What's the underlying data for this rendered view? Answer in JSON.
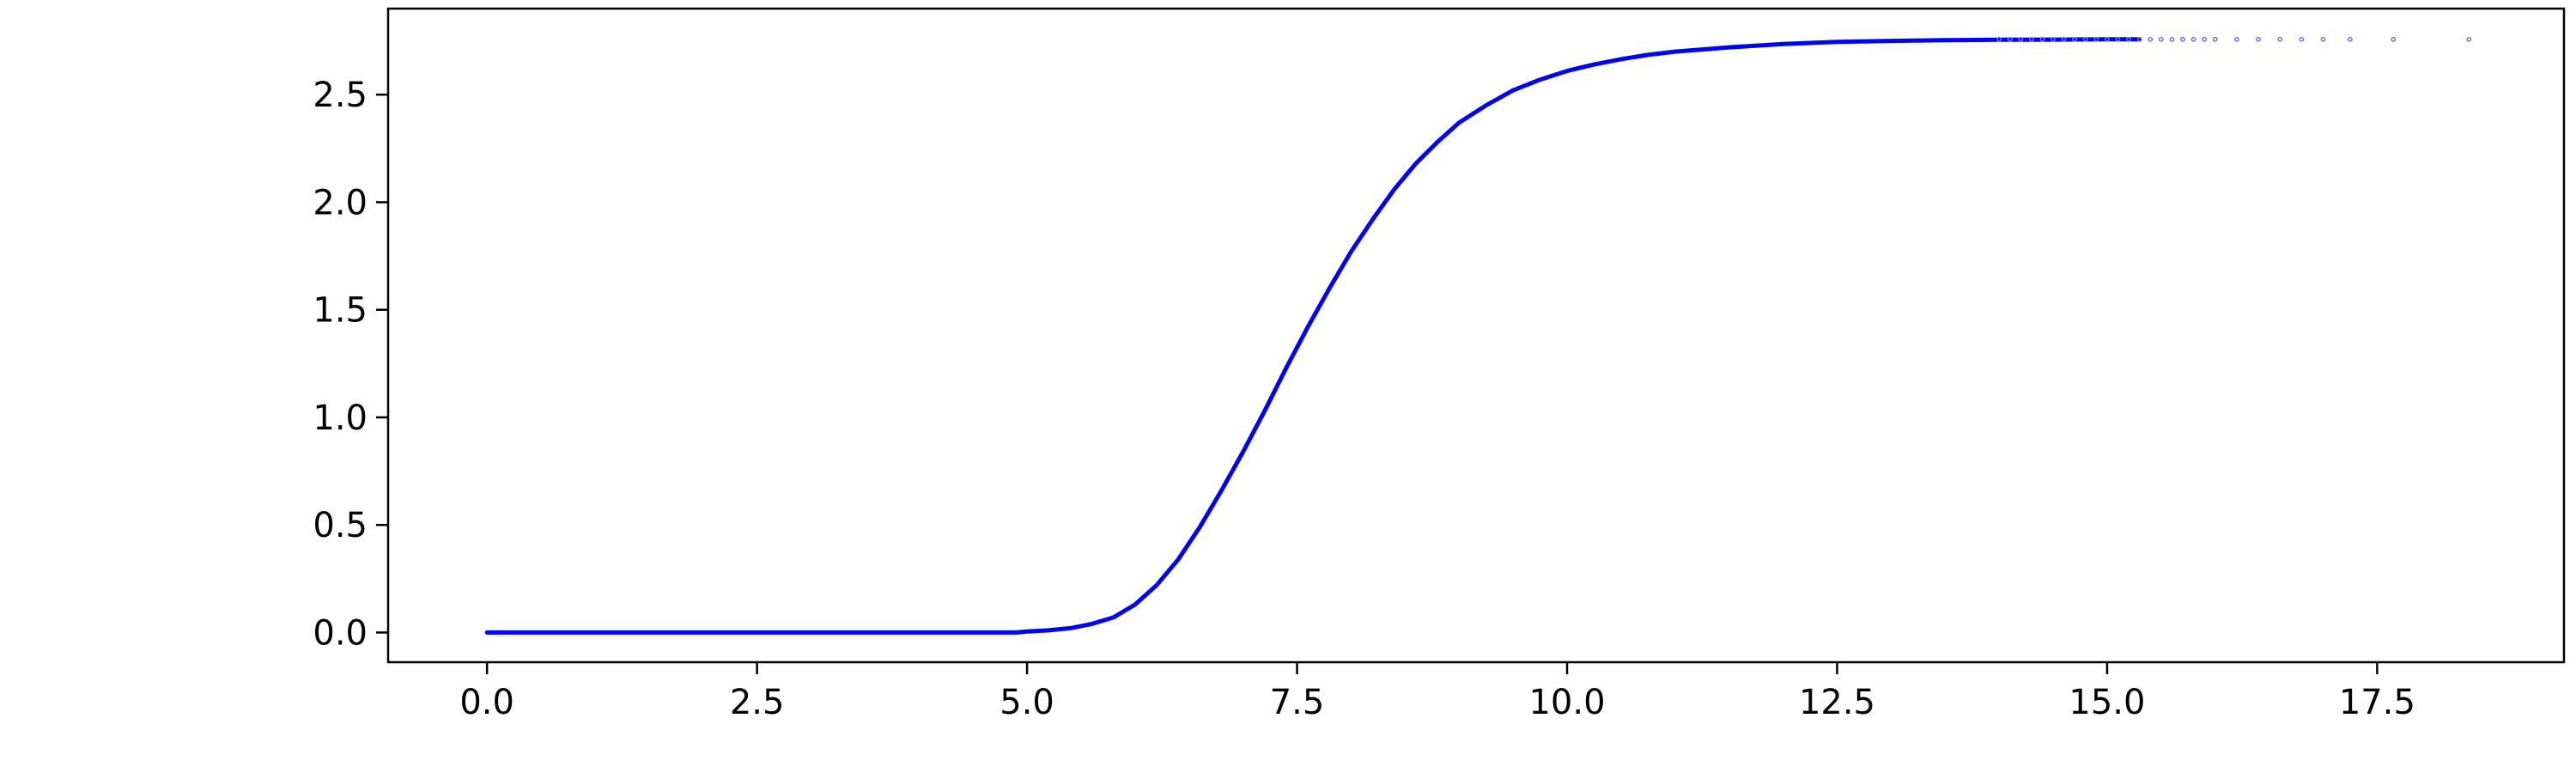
{
  "chart_data": {
    "type": "line",
    "title": "",
    "xlabel": "",
    "ylabel": "",
    "xlim": [
      -0.9156,
      19.23
    ],
    "ylim": [
      -0.138,
      2.9
    ],
    "x_ticks": [
      "0.0",
      "2.5",
      "5.0",
      "7.5",
      "10.0",
      "12.5",
      "15.0",
      "17.5"
    ],
    "y_ticks": [
      "0.0",
      "0.5",
      "1.0",
      "1.5",
      "2.0",
      "2.5"
    ],
    "grid": false,
    "legend": "none",
    "colors": {
      "line": "#0000ff",
      "markers": "#7070ff",
      "axes": "#000000",
      "background": "#ffffff"
    },
    "series": [
      {
        "style": "solid-line",
        "x": [
          0.0,
          1.0,
          2.0,
          3.0,
          4.0,
          4.9,
          5.0,
          5.2,
          5.4,
          5.6,
          5.8,
          6.0,
          6.2,
          6.4,
          6.6,
          6.8,
          7.0,
          7.2,
          7.4,
          7.6,
          7.8,
          8.0,
          8.2,
          8.4,
          8.6,
          8.8,
          9.0,
          9.25,
          9.5,
          9.75,
          10.0,
          10.25,
          10.5,
          10.75,
          11.0,
          11.5,
          12.0,
          12.5,
          13.0,
          13.5,
          14.0,
          14.5,
          15.0,
          15.3
        ],
        "y": [
          0.0,
          0.0,
          0.0,
          0.0,
          0.0,
          0.0,
          0.005,
          0.01,
          0.02,
          0.04,
          0.07,
          0.13,
          0.22,
          0.34,
          0.49,
          0.66,
          0.84,
          1.03,
          1.23,
          1.42,
          1.6,
          1.77,
          1.92,
          2.06,
          2.18,
          2.28,
          2.37,
          2.45,
          2.52,
          2.57,
          2.61,
          2.64,
          2.665,
          2.685,
          2.7,
          2.72,
          2.735,
          2.745,
          2.75,
          2.753,
          2.755,
          2.756,
          2.757,
          2.757
        ]
      },
      {
        "style": "markers",
        "x": [
          14.0,
          14.1,
          14.2,
          14.3,
          14.4,
          14.5,
          14.6,
          14.7,
          14.8,
          14.9,
          15.0,
          15.1,
          15.2,
          15.3,
          15.4,
          15.5,
          15.6,
          15.7,
          15.8,
          15.9,
          16.0,
          16.2,
          16.4,
          16.6,
          16.8,
          17.0,
          17.25,
          17.65,
          18.35
        ],
        "y": [
          2.757,
          2.757,
          2.757,
          2.757,
          2.757,
          2.757,
          2.757,
          2.757,
          2.757,
          2.757,
          2.757,
          2.757,
          2.757,
          2.757,
          2.757,
          2.757,
          2.757,
          2.757,
          2.757,
          2.757,
          2.757,
          2.757,
          2.757,
          2.757,
          2.757,
          2.757,
          2.757,
          2.757,
          2.757
        ]
      }
    ]
  }
}
